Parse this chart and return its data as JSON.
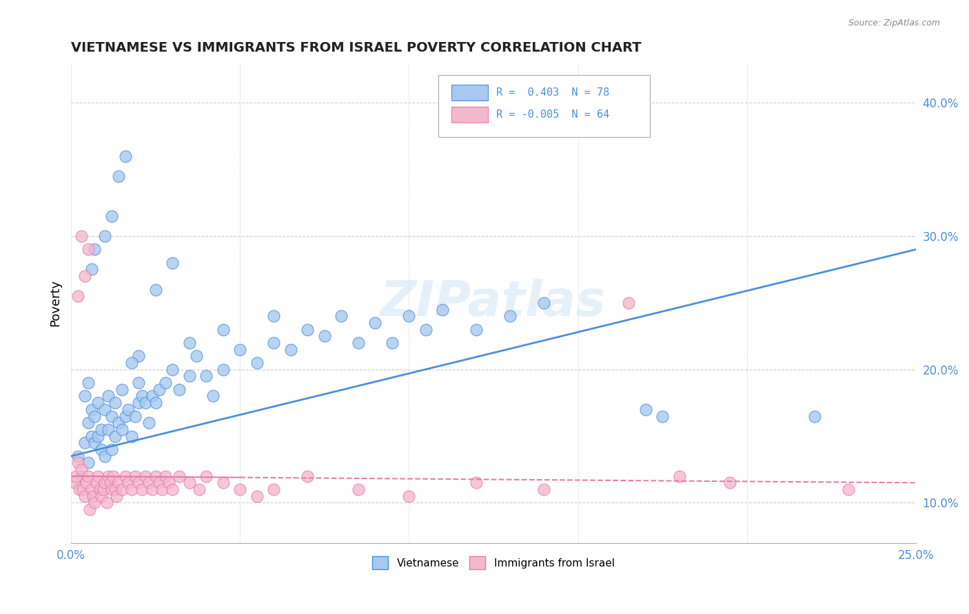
{
  "title": "VIETNAMESE VS IMMIGRANTS FROM ISRAEL POVERTY CORRELATION CHART",
  "source": "Source: ZipAtlas.com",
  "ylabel": "Poverty",
  "xlim": [
    0.0,
    25.0
  ],
  "ylim": [
    7.0,
    43.0
  ],
  "yticks": [
    10.0,
    20.0,
    30.0,
    40.0
  ],
  "ytick_labels": [
    "10.0%",
    "20.0%",
    "30.0%",
    "40.0%"
  ],
  "xtick_positions": [
    0.0,
    5.0,
    10.0,
    15.0,
    20.0,
    25.0
  ],
  "legend_r1": "R =  0.403",
  "legend_n1": "N = 78",
  "legend_r2": "R = -0.005",
  "legend_n2": "N = 64",
  "color_blue": "#a8c8f0",
  "color_pink": "#f4b8cc",
  "color_blue_line": "#4a90d9",
  "color_pink_line": "#e87aaa",
  "watermark": "ZIPatlas",
  "legend_label1": "Vietnamese",
  "legend_label2": "Immigrants from Israel",
  "blue_scatter_x": [
    0.2,
    0.3,
    0.4,
    0.5,
    0.5,
    0.6,
    0.6,
    0.7,
    0.7,
    0.8,
    0.8,
    0.9,
    0.9,
    1.0,
    1.0,
    1.1,
    1.1,
    1.2,
    1.2,
    1.3,
    1.3,
    1.4,
    1.5,
    1.5,
    1.6,
    1.7,
    1.8,
    1.9,
    2.0,
    2.0,
    2.1,
    2.2,
    2.3,
    2.4,
    2.5,
    2.6,
    2.8,
    3.0,
    3.2,
    3.5,
    3.7,
    4.0,
    4.2,
    4.5,
    5.0,
    5.5,
    6.0,
    6.5,
    7.0,
    7.5,
    8.0,
    8.5,
    9.0,
    9.5,
    10.0,
    10.5,
    11.0,
    12.0,
    13.0,
    14.0,
    2.5,
    3.0,
    0.6,
    0.7,
    1.0,
    1.2,
    1.4,
    1.6,
    0.4,
    0.5,
    2.0,
    1.8,
    3.5,
    4.5,
    6.0,
    17.0,
    17.5,
    22.0
  ],
  "blue_scatter_y": [
    13.5,
    12.0,
    14.5,
    13.0,
    16.0,
    15.0,
    17.0,
    14.5,
    16.5,
    15.0,
    17.5,
    14.0,
    15.5,
    13.5,
    17.0,
    15.5,
    18.0,
    14.0,
    16.5,
    15.0,
    17.5,
    16.0,
    15.5,
    18.5,
    16.5,
    17.0,
    15.0,
    16.5,
    17.5,
    19.0,
    18.0,
    17.5,
    16.0,
    18.0,
    17.5,
    18.5,
    19.0,
    20.0,
    18.5,
    19.5,
    21.0,
    19.5,
    18.0,
    20.0,
    21.5,
    20.5,
    22.0,
    21.5,
    23.0,
    22.5,
    24.0,
    22.0,
    23.5,
    22.0,
    24.0,
    23.0,
    24.5,
    23.0,
    24.0,
    25.0,
    26.0,
    28.0,
    27.5,
    29.0,
    30.0,
    31.5,
    34.5,
    36.0,
    18.0,
    19.0,
    21.0,
    20.5,
    22.0,
    23.0,
    24.0,
    17.0,
    16.5,
    16.5
  ],
  "pink_scatter_x": [
    0.1,
    0.15,
    0.2,
    0.25,
    0.3,
    0.35,
    0.4,
    0.45,
    0.5,
    0.55,
    0.6,
    0.65,
    0.7,
    0.75,
    0.8,
    0.85,
    0.9,
    0.95,
    1.0,
    1.05,
    1.1,
    1.15,
    1.2,
    1.25,
    1.3,
    1.35,
    1.4,
    1.5,
    1.6,
    1.7,
    1.8,
    1.9,
    2.0,
    2.1,
    2.2,
    2.3,
    2.4,
    2.5,
    2.6,
    2.7,
    2.8,
    2.9,
    3.0,
    3.2,
    3.5,
    3.8,
    4.0,
    4.5,
    5.0,
    5.5,
    6.0,
    7.0,
    8.5,
    10.0,
    12.0,
    14.0,
    16.5,
    18.0,
    19.5,
    23.0,
    0.3,
    0.5,
    0.2,
    0.4
  ],
  "pink_scatter_y": [
    11.5,
    12.0,
    13.0,
    11.0,
    12.5,
    11.0,
    10.5,
    11.5,
    12.0,
    9.5,
    11.0,
    10.5,
    10.0,
    11.5,
    12.0,
    11.0,
    10.5,
    11.0,
    11.5,
    10.0,
    12.0,
    11.5,
    11.0,
    12.0,
    11.0,
    10.5,
    11.5,
    11.0,
    12.0,
    11.5,
    11.0,
    12.0,
    11.5,
    11.0,
    12.0,
    11.5,
    11.0,
    12.0,
    11.5,
    11.0,
    12.0,
    11.5,
    11.0,
    12.0,
    11.5,
    11.0,
    12.0,
    11.5,
    11.0,
    10.5,
    11.0,
    12.0,
    11.0,
    10.5,
    11.5,
    11.0,
    25.0,
    12.0,
    11.5,
    11.0,
    30.0,
    29.0,
    25.5,
    27.0
  ]
}
